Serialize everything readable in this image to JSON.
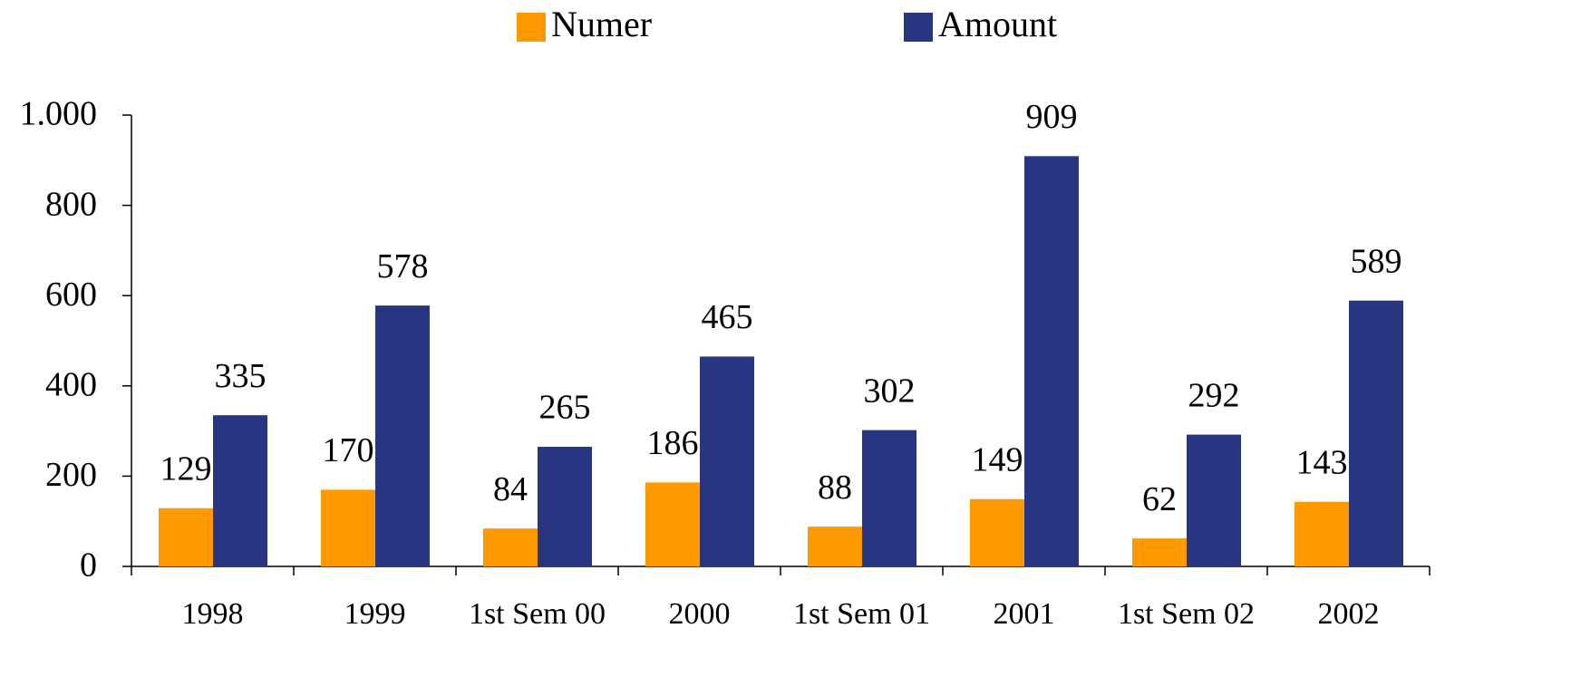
{
  "chart_data": {
    "type": "bar",
    "categories": [
      "1998",
      "1999",
      "1st Sem 00",
      "2000",
      "1st Sem 01",
      "2001",
      "1st Sem 02",
      "2002"
    ],
    "series": [
      {
        "name": "Numer",
        "color": "#FF9900",
        "values": [
          129,
          170,
          84,
          186,
          88,
          149,
          62,
          143
        ]
      },
      {
        "name": "Amount",
        "color": "#283580",
        "values": [
          335,
          578,
          265,
          465,
          302,
          909,
          292,
          589
        ]
      }
    ],
    "ylim": [
      0,
      1000
    ],
    "yticks": [
      0,
      200,
      400,
      600,
      800,
      {
        "value": 1000,
        "label": "1.000"
      }
    ],
    "grid": false,
    "legend": "top"
  }
}
